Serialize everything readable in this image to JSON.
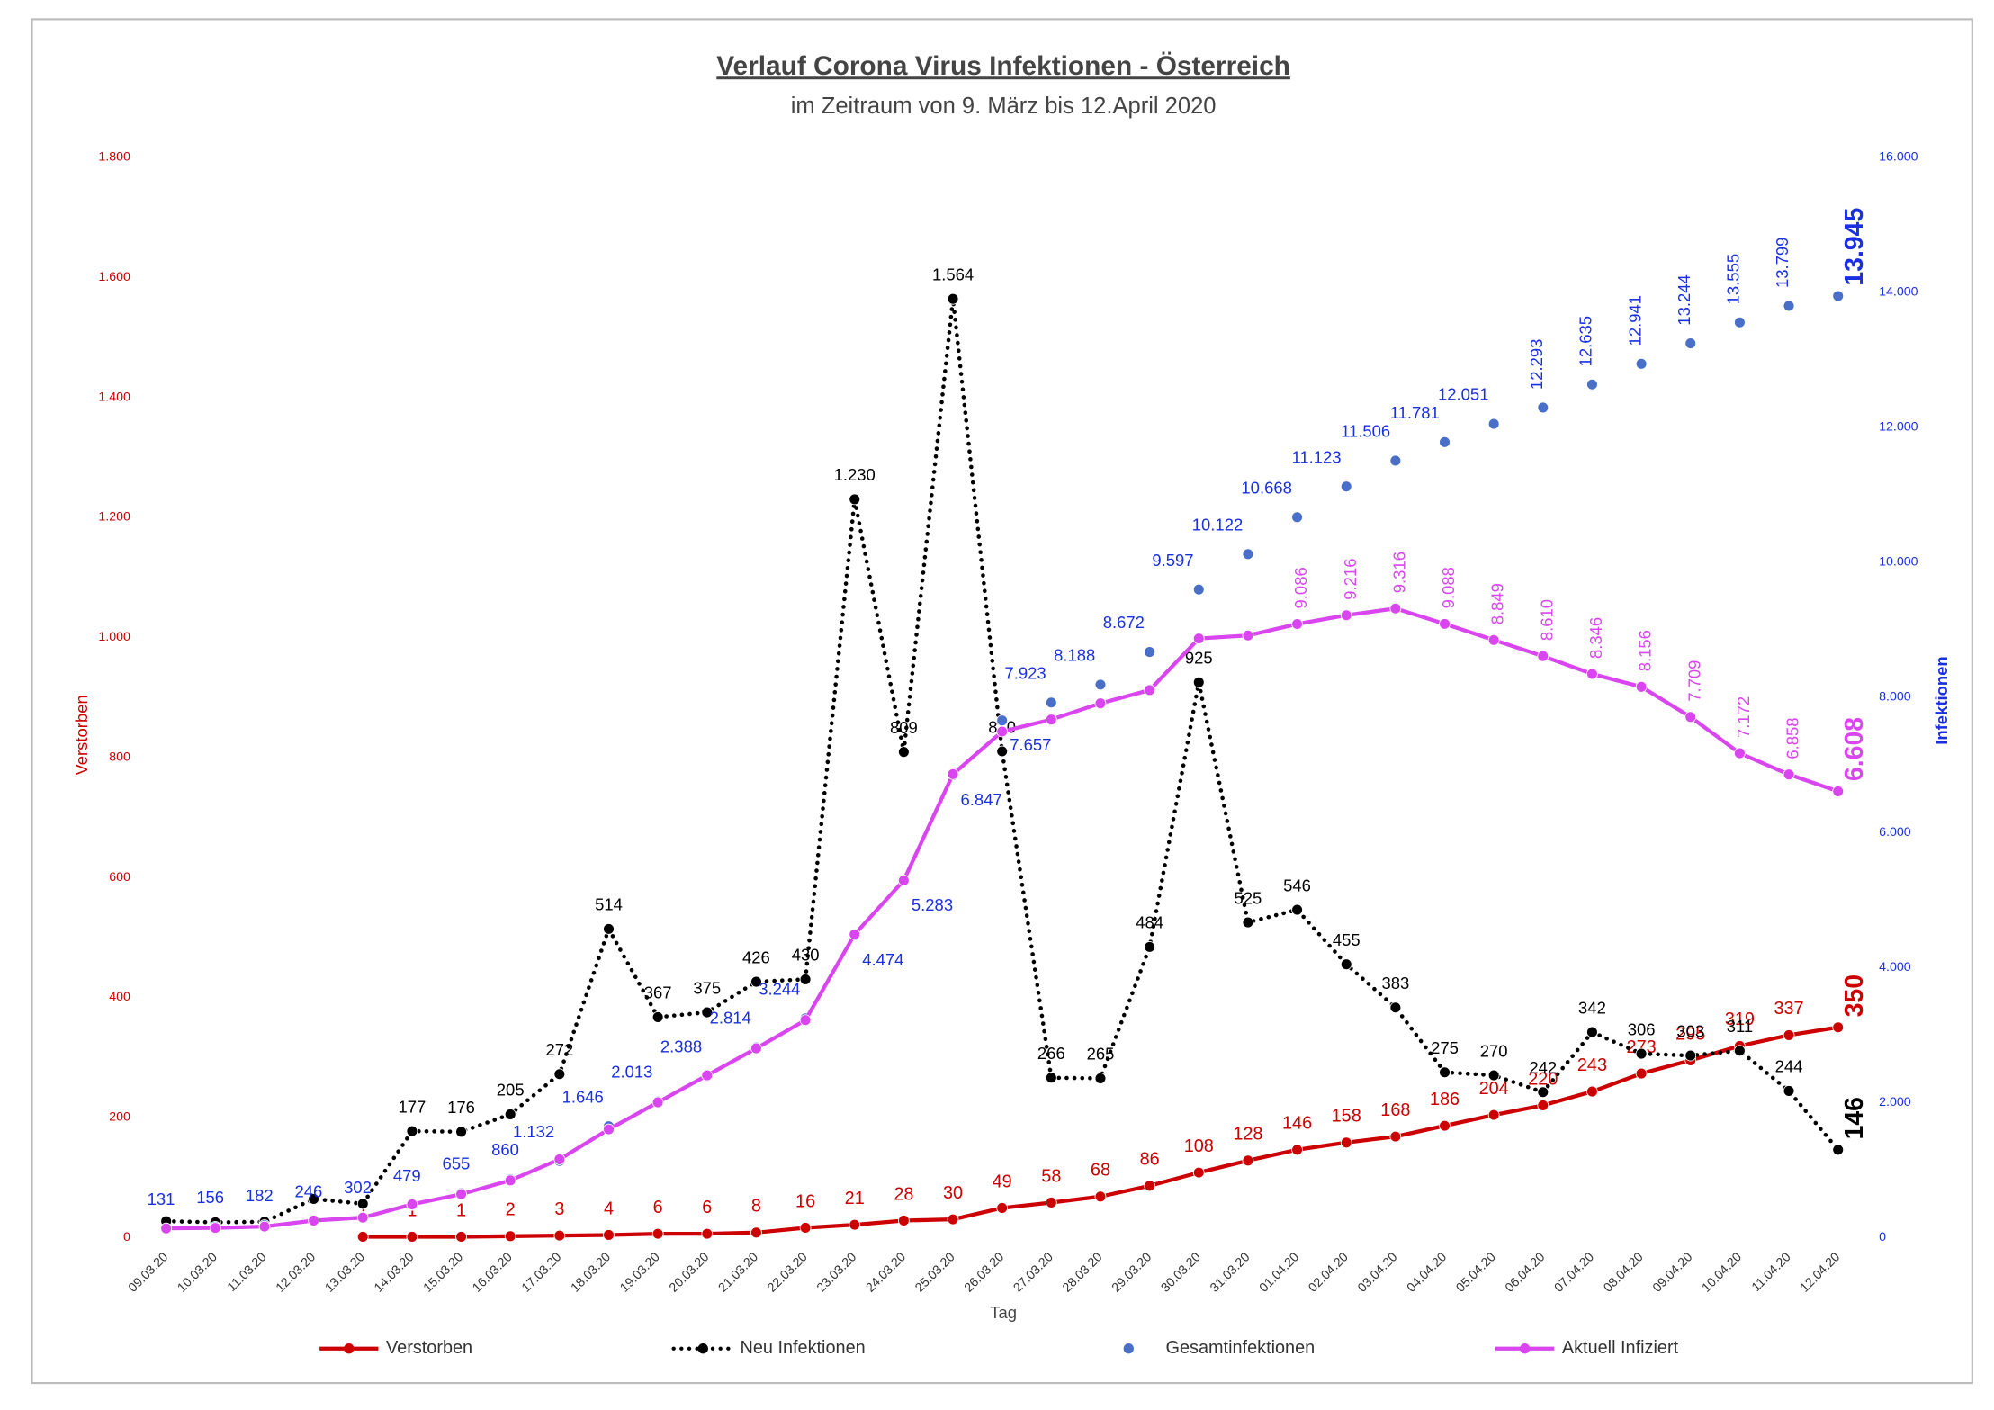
{
  "chart_data": {
    "type": "line",
    "title": "Verlauf Corona Virus Infektionen - Österreich",
    "subtitle": "im Zeitraum von 9. März bis 12.April 2020",
    "x_label": "Tag",
    "y_label": "Verstorben",
    "y2_label": "Infektionen",
    "categories": [
      "09.03.20",
      "10.03.20",
      "11.03.20",
      "12.03.20",
      "13.03.20",
      "14.03.20",
      "15.03.20",
      "16.03.20",
      "17.03.20",
      "18.03.20",
      "19.03.20",
      "20.03.20",
      "21.03.20",
      "22.03.20",
      "23.03.20",
      "24.03.20",
      "25.03.20",
      "26.03.20",
      "27.03.20",
      "28.03.20",
      "29.03.20",
      "30.03.20",
      "31.03.20",
      "01.04.20",
      "02.04.20",
      "03.04.20",
      "04.04.20",
      "05.04.20",
      "06.04.20",
      "07.04.20",
      "08.04.20",
      "09.04.20",
      "10.04.20",
      "11.04.20",
      "12.04.20"
    ],
    "ylim": [
      0,
      1800
    ],
    "yticks": [
      0,
      200,
      400,
      600,
      800,
      {
        "value": 1000,
        "label": "1.000"
      },
      {
        "value": 1200,
        "label": "1.200"
      },
      {
        "value": 1400,
        "label": "1.400"
      },
      {
        "value": 1600,
        "label": "1.600"
      },
      {
        "value": 1800,
        "label": "1.800"
      }
    ],
    "y2lim": [
      0,
      16000
    ],
    "y2ticks": [
      0,
      {
        "value": 2000,
        "label": "2.000"
      },
      {
        "value": 4000,
        "label": "4.000"
      },
      {
        "value": 6000,
        "label": "6.000"
      },
      {
        "value": 8000,
        "label": "8.000"
      },
      {
        "value": 10000,
        "label": "10.000"
      },
      {
        "value": 12000,
        "label": "12.000"
      },
      {
        "value": 14000,
        "label": "14.000"
      },
      {
        "value": 16000,
        "label": "16.000"
      }
    ],
    "legend": "bottom",
    "series": [
      {
        "name": "Verstorben",
        "color": "#cc0000",
        "style": "solid",
        "values": [
          null,
          null,
          null,
          null,
          1,
          1,
          1,
          2,
          3,
          4,
          6,
          6,
          8,
          16,
          21,
          28,
          30,
          49,
          58,
          68,
          86,
          108,
          128,
          146,
          158,
          168,
          186,
          204,
          220,
          243,
          273,
          295,
          319,
          337,
          350
        ]
      },
      {
        "name": "Neu Infektionen",
        "color": "#000000",
        "style": "dotted",
        "values": [
          27,
          25,
          26,
          64,
          56,
          177,
          176,
          205,
          272,
          514,
          367,
          375,
          426,
          430,
          1230,
          809,
          1564,
          810,
          266,
          265,
          484,
          925,
          525,
          546,
          455,
          383,
          275,
          270,
          242,
          342,
          306,
          303,
          311,
          244,
          146
        ],
        "value_labels": [
          null,
          null,
          null,
          null,
          null,
          "177",
          "176",
          "205",
          "272",
          "514",
          "367",
          "375",
          "426",
          "430",
          "1.230",
          "809",
          "1.564",
          "810",
          "266",
          "265",
          "484",
          "925",
          "525",
          "546",
          "455",
          "383",
          "275",
          "270",
          "242",
          "342",
          "306",
          "303",
          "311",
          "244",
          "146"
        ]
      },
      {
        "name": "Gesamtinfektionen",
        "color": "#4a6fc9",
        "style": "markers",
        "axis": "y2",
        "values": [
          131,
          156,
          182,
          246,
          302,
          479,
          655,
          860,
          1132,
          1646,
          2013,
          2388,
          2814,
          3244,
          4474,
          5283,
          6847,
          7657,
          7923,
          8188,
          8672,
          9597,
          10122,
          10668,
          11123,
          11506,
          11781,
          12051,
          12293,
          12635,
          12941,
          13244,
          13555,
          13799,
          13945
        ],
        "value_labels": [
          "131",
          "156",
          "182",
          "246",
          "302",
          "479",
          "655",
          "860",
          "1.132",
          "1.646",
          "2.013",
          "2.388",
          "2.814",
          "3.244",
          "4.474",
          "5.283",
          "6.847",
          "7.657",
          "7.923",
          "8.188",
          "8.672",
          "9.597",
          "10.122",
          "10.668",
          "11.123",
          "11.506",
          "11.781",
          "12.051",
          "12.293",
          "12.635",
          "12.941",
          "13.244",
          "13.555",
          "13.799",
          "13.945"
        ]
      },
      {
        "name": "Aktuell Infiziert",
        "color": "#d946ef",
        "style": "solid",
        "axis": "y2",
        "values": [
          133,
          140,
          160,
          249,
          293,
          489,
          640,
          844,
          1156,
          1600,
          2000,
          2400,
          2800,
          3218,
          4489,
          5289,
          6862,
          7493,
          7671,
          7911,
          8107,
          8871,
          8916,
          9086,
          9216,
          9316,
          9088,
          8849,
          8610,
          8346,
          8156,
          7709,
          7172,
          6858,
          6608
        ],
        "value_labels": [
          null,
          null,
          null,
          null,
          null,
          null,
          null,
          null,
          null,
          null,
          null,
          null,
          null,
          null,
          null,
          null,
          null,
          null,
          null,
          null,
          null,
          null,
          null,
          "9.086",
          "9.216",
          "9.316",
          "9.088",
          "8.849",
          "8.610",
          "8.346",
          "8.156",
          "7.709",
          "7.172",
          "6.858",
          "6.608"
        ]
      }
    ]
  }
}
